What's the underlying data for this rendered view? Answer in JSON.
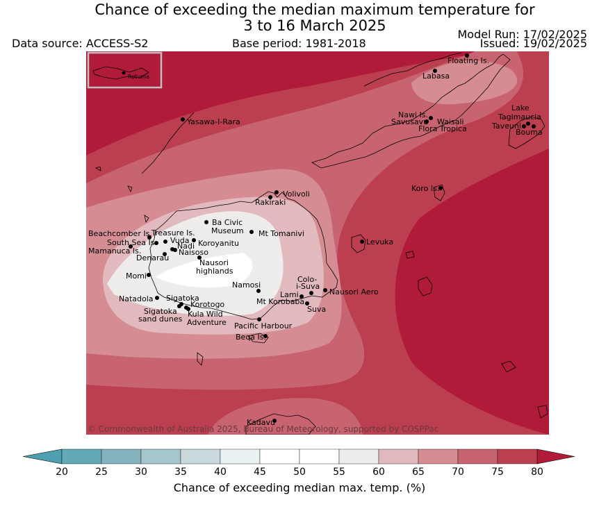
{
  "header": {
    "title_line1": "Chance of exceeding the median maximum temperature for",
    "title_line2": "3 to 16 March 2025",
    "data_source": "Data source: ACCESS-S2",
    "base_period": "Base period: 1981-2018",
    "model_run": "Model Run: 17/02/2025",
    "issued": "Issued: 19/02/2025"
  },
  "map": {
    "copyright": "© Commonwealth of Australia 2025, Bureau of Meteorology, supported by COSPPac",
    "inset_label": "Rotuma",
    "places": [
      {
        "id": "floating",
        "name": "Floating Is."
      },
      {
        "id": "labasa",
        "name": "Labasa"
      },
      {
        "id": "nawi",
        "name": "Nawi Is."
      },
      {
        "id": "savusavu",
        "name": "Savusavu"
      },
      {
        "id": "waisali",
        "name": "Waisali"
      },
      {
        "id": "flora",
        "name": "Flora Tropica"
      },
      {
        "id": "lake",
        "name": "Lake"
      },
      {
        "id": "tagimaucia",
        "name": "Tagimaucia"
      },
      {
        "id": "taveuni",
        "name": "Taveuni"
      },
      {
        "id": "bouma",
        "name": "Bouma"
      },
      {
        "id": "yasawa",
        "name": "Yasawa-I-Rara"
      },
      {
        "id": "koro",
        "name": "Koro Is."
      },
      {
        "id": "volivoli",
        "name": "Volivoli"
      },
      {
        "id": "rakiraki",
        "name": "Rakiraki"
      },
      {
        "id": "bacivic1",
        "name": "Ba Civic"
      },
      {
        "id": "bacivic2",
        "name": "Museum"
      },
      {
        "id": "tomanivi",
        "name": "Mt Tomanivi"
      },
      {
        "id": "beachcomber",
        "name": "Beachcomber Is."
      },
      {
        "id": "treasure",
        "name": "Treasure Is."
      },
      {
        "id": "southsea",
        "name": "South Sea Is."
      },
      {
        "id": "vuda",
        "name": "Vuda"
      },
      {
        "id": "koroyanitu",
        "name": "Koroyanitu"
      },
      {
        "id": "nadi",
        "name": "Nadi"
      },
      {
        "id": "mamanuca",
        "name": "Mamanuca Is."
      },
      {
        "id": "naisoso",
        "name": "Naisoso"
      },
      {
        "id": "denarau",
        "name": "Denarau"
      },
      {
        "id": "nausori_h1",
        "name": "Nausori"
      },
      {
        "id": "nausori_h2",
        "name": "highlands"
      },
      {
        "id": "levuka",
        "name": "Levuka"
      },
      {
        "id": "momi",
        "name": "Momi"
      },
      {
        "id": "namosi",
        "name": "Namosi"
      },
      {
        "id": "colo1",
        "name": "Colo-"
      },
      {
        "id": "colo2",
        "name": "i-Suva"
      },
      {
        "id": "nausori_aero",
        "name": "Nausori Aero"
      },
      {
        "id": "lami",
        "name": "Lami"
      },
      {
        "id": "korobaba",
        "name": "Mt Korobaba"
      },
      {
        "id": "suva",
        "name": "Suva"
      },
      {
        "id": "natadola",
        "name": "Natadola"
      },
      {
        "id": "sigatoka",
        "name": "Sigatoka"
      },
      {
        "id": "korotogo",
        "name": "Korotogo"
      },
      {
        "id": "sigdunes1",
        "name": "Sigatoka"
      },
      {
        "id": "sigdunes2",
        "name": "sand dunes"
      },
      {
        "id": "kula1",
        "name": "Kula Wild"
      },
      {
        "id": "kula2",
        "name": "Adventure"
      },
      {
        "id": "pacific",
        "name": "Pacific Harbour"
      },
      {
        "id": "beqa",
        "name": "Beqa Is."
      },
      {
        "id": "kadavu",
        "name": "Kadavu"
      }
    ]
  },
  "colorbar": {
    "label": "Chance of exceeding median max. temp. (%)",
    "ticks": [
      "20",
      "25",
      "30",
      "35",
      "40",
      "45",
      "50",
      "55",
      "60",
      "65",
      "70",
      "75",
      "80"
    ],
    "colors": [
      "#62aab8",
      "#84b3bf",
      "#a5c6cc",
      "#c9d9dc",
      "#eaf1f3",
      "#ffffff",
      "#ffffff",
      "#efecec",
      "#e2b9bd",
      "#d58c93",
      "#c8646f",
      "#bb3f4e",
      "#b01b3a"
    ],
    "low_extend_color": "#4e9faf",
    "high_extend_color": "#b01b3a"
  }
}
